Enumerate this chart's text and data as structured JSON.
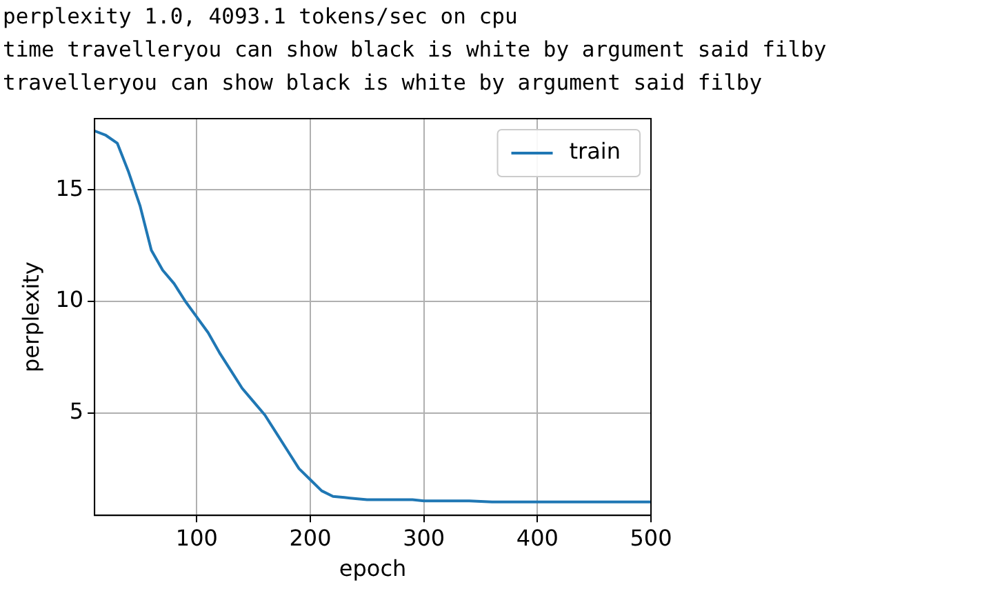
{
  "chart_data": {
    "type": "line",
    "xlabel": "epoch",
    "ylabel": "perplexity",
    "annotations": [
      "perplexity 1.0, 4093.1 tokens/sec on cpu",
      "time travelleryou can show black is white by argument said filby",
      "travelleryou can show black is white by argument said filby"
    ],
    "x": [
      10,
      20,
      30,
      40,
      50,
      60,
      70,
      80,
      90,
      100,
      110,
      120,
      130,
      140,
      150,
      160,
      170,
      180,
      190,
      200,
      210,
      220,
      230,
      240,
      250,
      260,
      270,
      280,
      290,
      300,
      320,
      340,
      360,
      380,
      400,
      420,
      440,
      460,
      480,
      500
    ],
    "series": [
      {
        "name": "train",
        "color": "#1f77b4",
        "values": [
          17.65,
          17.45,
          17.1,
          15.8,
          14.3,
          12.3,
          11.4,
          10.8,
          10.0,
          9.3,
          8.6,
          7.7,
          6.9,
          6.1,
          5.5,
          4.9,
          4.1,
          3.3,
          2.5,
          2.0,
          1.5,
          1.25,
          1.2,
          1.15,
          1.1,
          1.1,
          1.1,
          1.1,
          1.1,
          1.05,
          1.05,
          1.05,
          1.0,
          1.0,
          1.0,
          1.0,
          1.0,
          1.0,
          1.0,
          1.0
        ]
      }
    ],
    "xlim": [
      10,
      500
    ],
    "xticks": [
      100,
      200,
      300,
      400,
      500
    ],
    "ylim": [
      0.4,
      18.2
    ],
    "yticks": [
      5,
      10,
      15
    ],
    "grid": true,
    "legend": "top right",
    "marker": "none",
    "line_style": "solid"
  }
}
